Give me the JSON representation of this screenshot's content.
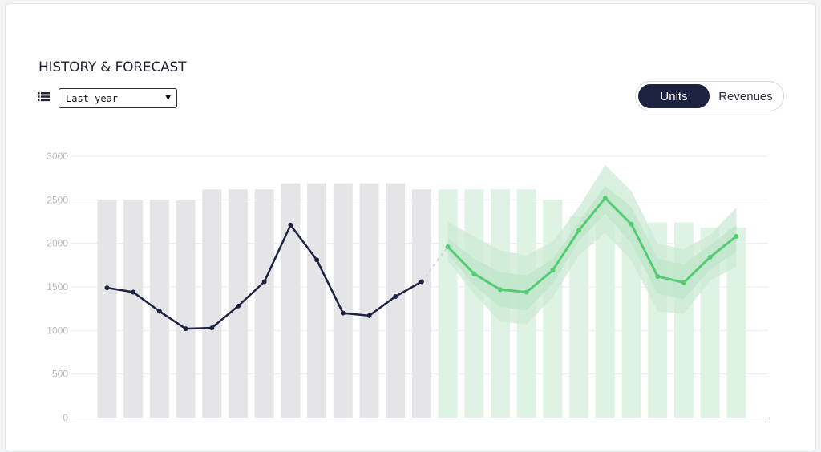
{
  "header": {
    "title": "HISTORY & FORECAST",
    "period_select": {
      "value": "Last year",
      "caret": "▼"
    },
    "toggle": {
      "options": [
        "Units",
        "Revenues"
      ],
      "selected": "Units"
    }
  },
  "colors": {
    "history_bar": "#e5e5e8",
    "forecast_bar": "#dff3e4",
    "history_line": "#1c2240",
    "forecast_line": "#55cc73",
    "forecast_band_outer": "#ccebd5",
    "forecast_band_inner": "#bfe6c9",
    "grid": "#ececee",
    "axis": "#3a3d48"
  },
  "chart_data": {
    "type": "bar",
    "title": "",
    "xlabel": "",
    "ylabel": "",
    "ylim": [
      0,
      3000
    ],
    "yticks": [
      "0",
      "500",
      "1000",
      "1500",
      "2000",
      "2500",
      "3000"
    ],
    "grid": true,
    "history_bars": [
      2500,
      2500,
      2500,
      2500,
      2620,
      2620,
      2620,
      2690,
      2690,
      2690,
      2690,
      2690,
      2620
    ],
    "forecast_bars": [
      2620,
      2620,
      2620,
      2620,
      2500,
      2310,
      2310,
      2240,
      2240,
      2240,
      2180,
      2180
    ],
    "history_line": [
      1490,
      1440,
      1220,
      1020,
      1030,
      1280,
      1560,
      2210,
      1810,
      1200,
      1170,
      1390,
      1560
    ],
    "forecast_line": [
      1960,
      1650,
      1470,
      1440,
      1690,
      2150,
      2520,
      2220,
      1620,
      1550,
      1840,
      2080
    ],
    "forecast_band_outer": {
      "upper": [
        2250,
        2080,
        1920,
        1860,
        2020,
        2420,
        2900,
        2600,
        2000,
        1930,
        2100,
        2410
      ],
      "lower": [
        1800,
        1420,
        1100,
        1070,
        1380,
        1860,
        2120,
        1800,
        1220,
        1190,
        1570,
        1730
      ]
    },
    "forecast_band_inner": {
      "upper": [
        2060,
        1820,
        1670,
        1630,
        1820,
        2250,
        2660,
        2420,
        1820,
        1760,
        1980,
        2210
      ],
      "lower": [
        1880,
        1520,
        1270,
        1230,
        1540,
        2030,
        2340,
        2000,
        1420,
        1360,
        1700,
        1900
      ]
    }
  }
}
